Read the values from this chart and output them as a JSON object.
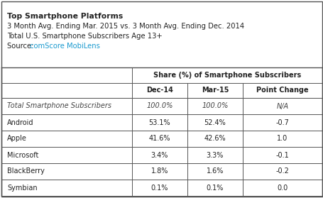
{
  "title_line1": "Top Smartphone Platforms",
  "title_line2": "3 Month Avg. Ending Mar. 2015 vs. 3 Month Avg. Ending Dec. 2014",
  "title_line3": "Total U.S. Smartphone Subscribers Age 13+",
  "title_line4_prefix": "Source: ",
  "title_line4_link": "comScore MobiLens",
  "link_color": "#1a9acf",
  "header_group": "Share (%) of Smartphone Subscribers",
  "col_headers": [
    "Dec-14",
    "Mar-15",
    "Point Change"
  ],
  "rows": [
    {
      "label": "Total Smartphone Subscribers",
      "italic": true,
      "dec14": "100.0%",
      "mar15": "100.0%",
      "change": "N/A"
    },
    {
      "label": "Android",
      "italic": false,
      "dec14": "53.1%",
      "mar15": "52.4%",
      "change": "-0.7"
    },
    {
      "label": "Apple",
      "italic": false,
      "dec14": "41.6%",
      "mar15": "42.6%",
      "change": "1.0"
    },
    {
      "label": "Microsoft",
      "italic": false,
      "dec14": "3.4%",
      "mar15": "3.3%",
      "change": "-0.1"
    },
    {
      "label": "BlackBerry",
      "italic": false,
      "dec14": "1.8%",
      "mar15": "1.6%",
      "change": "-0.2"
    },
    {
      "label": "Symbian",
      "italic": false,
      "dec14": "0.1%",
      "mar15": "0.1%",
      "change": "0.0"
    }
  ],
  "border_color": "#555555",
  "text_color": "#222222",
  "italic_color": "#444444",
  "fig_width": 4.56,
  "fig_height": 2.79,
  "dpi": 100
}
